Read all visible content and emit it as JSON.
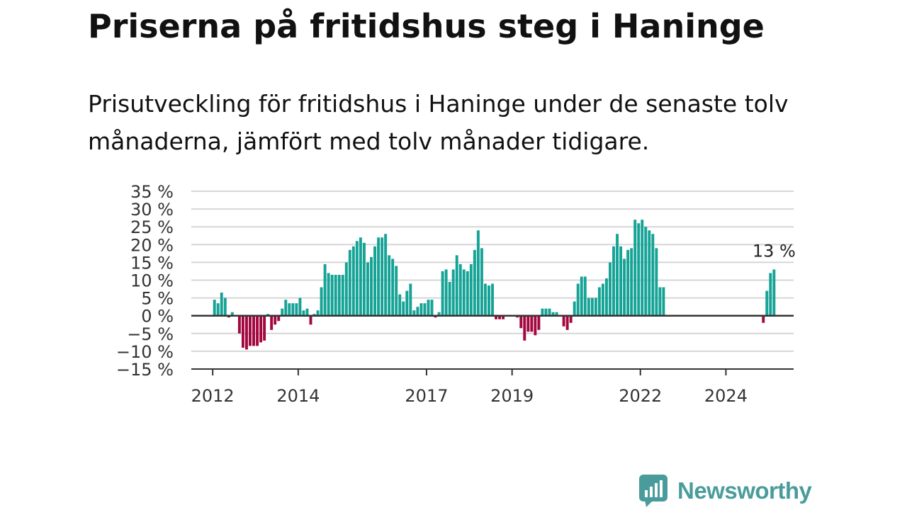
{
  "title": "Priserna på fritidshus steg i Haninge",
  "subtitle": "Prisutveckling för fritidshus i Haninge under de senaste tolv månaderna, jämfört med tolv månader tidigare.",
  "brand": {
    "name": "Newsworthy",
    "icon": "newsworthy-logo-icon",
    "color": "#4a9c9c"
  },
  "chart_data": {
    "type": "bar",
    "title": "Priserna på fritidshus steg i Haninge",
    "subtitle": "Prisutveckling för fritidshus i Haninge under de senaste tolv månaderna, jämfört med tolv månader tidigare.",
    "unit": "%",
    "x_label": "",
    "y_label": "",
    "y_range": [
      -15,
      35
    ],
    "y_ticks": [
      35,
      30,
      25,
      20,
      15,
      10,
      5,
      0,
      -5,
      -10,
      -15
    ],
    "y_tick_labels": [
      "35 %",
      "30 %",
      "25 %",
      "20 %",
      "15 %",
      "10 %",
      "5 %",
      "0 %",
      "−5 %",
      "−10 %",
      "−15 %"
    ],
    "x_range": [
      "2011-07",
      "2025-08"
    ],
    "x_ticks": [
      "2012-01",
      "2014-01",
      "2017-01",
      "2019-01",
      "2022-01",
      "2024-01"
    ],
    "x_tick_labels": [
      "2012",
      "2014",
      "2017",
      "2019",
      "2022",
      "2024"
    ],
    "grid": true,
    "legend": "none",
    "colors": {
      "positive": "#15a396",
      "negative": "#a3073f",
      "zero_line": "#333333",
      "grid": "#d6d6d6"
    },
    "annotation": {
      "text": "13 %",
      "x": "2025-02",
      "value": 13
    },
    "series": [
      {
        "x": [
          "2012-01",
          "2012-02",
          "2012-03",
          "2012-04",
          "2012-05",
          "2012-06",
          "2012-07",
          "2012-08",
          "2012-09",
          "2012-10",
          "2012-11",
          "2012-12",
          "2013-01",
          "2013-02",
          "2013-03",
          "2013-04",
          "2013-05",
          "2013-06",
          "2013-07",
          "2013-08",
          "2013-09",
          "2013-10",
          "2013-11",
          "2013-12",
          "2014-01",
          "2014-02",
          "2014-03",
          "2014-04",
          "2014-05",
          "2014-06",
          "2014-07",
          "2014-08",
          "2014-09",
          "2014-10",
          "2014-11",
          "2014-12",
          "2015-01",
          "2015-02",
          "2015-03",
          "2015-04",
          "2015-05",
          "2015-06",
          "2015-07",
          "2015-08",
          "2015-09",
          "2015-10",
          "2015-11",
          "2015-12",
          "2016-01",
          "2016-02",
          "2016-03",
          "2016-04",
          "2016-05",
          "2016-06",
          "2016-07",
          "2016-08",
          "2016-09",
          "2016-10",
          "2016-11",
          "2016-12",
          "2017-01",
          "2017-02",
          "2017-03",
          "2017-04",
          "2017-05",
          "2017-06",
          "2017-07",
          "2017-08",
          "2017-09",
          "2017-10",
          "2017-11",
          "2017-12",
          "2018-01",
          "2018-02",
          "2018-03",
          "2018-04",
          "2018-05",
          "2018-06",
          "2018-07",
          "2018-08",
          "2018-09",
          "2018-10",
          "2018-11",
          "2018-12",
          "2019-01",
          "2019-02",
          "2019-03",
          "2019-04",
          "2019-05",
          "2019-06",
          "2019-07",
          "2019-08",
          "2019-09",
          "2019-10",
          "2019-11",
          "2019-12",
          "2020-01",
          "2020-02",
          "2020-03",
          "2020-04",
          "2020-05",
          "2020-06",
          "2020-07",
          "2020-08",
          "2020-09",
          "2020-10",
          "2020-11",
          "2020-12",
          "2021-01",
          "2021-02",
          "2021-03",
          "2021-04",
          "2021-05",
          "2021-06",
          "2021-07",
          "2021-08",
          "2021-09",
          "2021-10",
          "2021-11",
          "2021-12",
          "2022-01",
          "2022-02",
          "2022-03",
          "2022-04",
          "2022-05",
          "2022-06",
          "2022-07",
          "2024-11",
          "2024-12",
          "2025-01",
          "2025-02"
        ],
        "values": [
          4.5,
          3.5,
          6.5,
          5.0,
          -0.5,
          1.0,
          0,
          -5.0,
          -9.0,
          -9.5,
          -8.5,
          -8.5,
          -8.5,
          -7.5,
          -7.0,
          0.5,
          -4.0,
          -2.5,
          -1.5,
          2.0,
          4.5,
          3.5,
          3.5,
          3.5,
          5.0,
          1.5,
          2.0,
          -2.5,
          0.5,
          1.5,
          8.0,
          14.5,
          12.0,
          11.5,
          11.5,
          11.5,
          11.5,
          15.0,
          18.5,
          19.5,
          21.0,
          22.0,
          20.5,
          15.0,
          16.5,
          19.5,
          22.0,
          22.0,
          23.0,
          17.0,
          16.0,
          14.0,
          6.0,
          4.0,
          7.0,
          9.0,
          1.5,
          2.5,
          3.5,
          3.5,
          4.5,
          4.5,
          -0.5,
          1.0,
          12.5,
          13.0,
          9.5,
          13.0,
          17.0,
          14.5,
          13.0,
          12.5,
          14.5,
          18.5,
          24.0,
          19.0,
          9.0,
          8.5,
          9.0,
          -1.0,
          -1.0,
          -1.0,
          0,
          0,
          0,
          -0.5,
          -3.5,
          -7.0,
          -4.5,
          -4.5,
          -5.5,
          -4.0,
          2.0,
          2.0,
          2.0,
          1.0,
          1.0,
          0,
          -3.0,
          -4.0,
          -2.0,
          4.0,
          9.0,
          11.0,
          11.0,
          5.0,
          5.0,
          5.0,
          8.0,
          9.0,
          10.5,
          15.0,
          19.5,
          23.0,
          19.5,
          16.0,
          18.5,
          19.0,
          27.0,
          26.0,
          27.0,
          25.0,
          24.0,
          23.0,
          19.0,
          8.0,
          8.0,
          -2.0,
          7.0,
          12.0,
          13.0
        ]
      }
    ]
  }
}
